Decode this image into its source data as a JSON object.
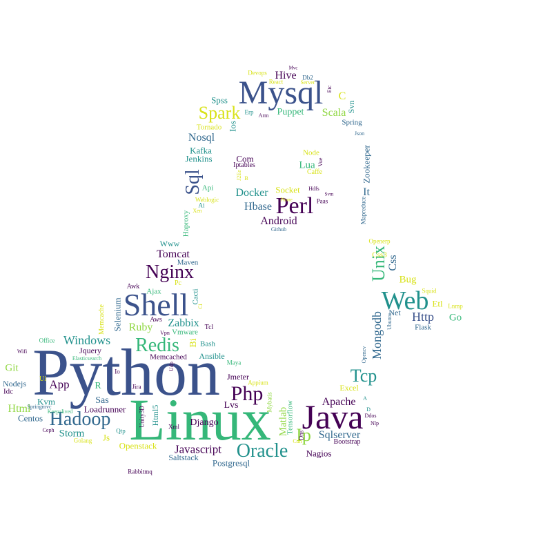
{
  "colors": {
    "purple": "#440154",
    "indigo": "#3b528b",
    "blue": "#31688e",
    "teal": "#21918c",
    "green": "#35b779",
    "lime": "#90d743",
    "yellow": "#d8e219"
  },
  "words": [
    {
      "text": "Python",
      "color": "indigo"
    },
    {
      "text": "Linux",
      "color": "green"
    },
    {
      "text": "Mysql",
      "color": "indigo"
    },
    {
      "text": "Shell",
      "color": "indigo"
    },
    {
      "text": "Java",
      "color": "purple"
    },
    {
      "text": "Web",
      "color": "teal"
    },
    {
      "text": "Perl",
      "color": "purple"
    },
    {
      "text": "Hadoop",
      "color": "blue"
    },
    {
      "text": "Redis",
      "color": "green"
    },
    {
      "text": "Oracle",
      "color": "teal"
    },
    {
      "text": "Nginx",
      "color": "purple"
    },
    {
      "text": "Php",
      "color": "purple"
    },
    {
      "text": "Sql",
      "color": "indigo"
    },
    {
      "text": "Tcp",
      "color": "teal"
    },
    {
      "text": "Spark",
      "color": "yellow"
    },
    {
      "text": "Unix",
      "color": "green"
    },
    {
      "text": "Windows",
      "color": "teal"
    },
    {
      "text": "Javascript",
      "color": "purple"
    },
    {
      "text": "Mongodb",
      "color": "blue"
    },
    {
      "text": "Ip",
      "color": "lime"
    },
    {
      "text": "Http",
      "color": "indigo"
    },
    {
      "text": "Sqlserver",
      "color": "blue"
    },
    {
      "text": "Apache",
      "color": "purple"
    },
    {
      "text": "Android",
      "color": "purple"
    },
    {
      "text": "Docker",
      "color": "teal"
    },
    {
      "text": "Hbase",
      "color": "blue"
    },
    {
      "text": "Tomcat",
      "color": "purple"
    },
    {
      "text": "Zabbix",
      "color": "teal"
    },
    {
      "text": "Ruby",
      "color": "lime"
    },
    {
      "text": "Storm",
      "color": "teal"
    },
    {
      "text": "App",
      "color": "purple"
    },
    {
      "text": "Nosql",
      "color": "blue"
    },
    {
      "text": "Hive",
      "color": "purple"
    },
    {
      "text": "Scala",
      "color": "lime"
    },
    {
      "text": "Puppet",
      "color": "green"
    },
    {
      "text": "Matlab",
      "color": "lime"
    },
    {
      "text": "Bug",
      "color": "yellow"
    },
    {
      "text": "Css",
      "color": "blue"
    },
    {
      "text": "Go",
      "color": "green"
    },
    {
      "text": "Selenium",
      "color": "blue"
    },
    {
      "text": "Html",
      "color": "lime"
    },
    {
      "text": "Git",
      "color": "lime"
    },
    {
      "text": "Kvm",
      "color": "teal"
    },
    {
      "text": "Centos",
      "color": "blue"
    },
    {
      "text": "Sas",
      "color": "blue"
    },
    {
      "text": "Js",
      "color": "yellow"
    },
    {
      "text": "Lvs",
      "color": "purple"
    },
    {
      "text": "Django",
      "color": "purple"
    },
    {
      "text": "Postgresql",
      "color": "blue"
    },
    {
      "text": "Saltstack",
      "color": "blue"
    },
    {
      "text": "Openstack",
      "color": "yellow"
    },
    {
      "text": "Nagios",
      "color": "purple"
    },
    {
      "text": "Excel",
      "color": "yellow"
    },
    {
      "text": "Jmeter",
      "color": "purple"
    },
    {
      "text": "Loadrunner",
      "color": "purple"
    },
    {
      "text": "Jquery",
      "color": "purple"
    },
    {
      "text": "Memcached",
      "color": "purple"
    },
    {
      "text": "Ansible",
      "color": "teal"
    },
    {
      "text": "Bash",
      "color": "teal"
    },
    {
      "text": "Vmware",
      "color": "green"
    },
    {
      "text": "Ajax",
      "color": "green"
    },
    {
      "text": "Maven",
      "color": "blue"
    },
    {
      "text": "Www",
      "color": "teal"
    },
    {
      "text": "Haproxy",
      "color": "green"
    },
    {
      "text": "Kafka",
      "color": "teal"
    },
    {
      "text": "Jenkins",
      "color": "teal"
    },
    {
      "text": "Ios",
      "color": "teal"
    },
    {
      "text": "Spss",
      "color": "teal"
    },
    {
      "text": "Tornado",
      "color": "yellow"
    },
    {
      "text": "Spring",
      "color": "blue"
    },
    {
      "text": "Svn",
      "color": "teal"
    },
    {
      "text": "C",
      "color": "yellow"
    },
    {
      "text": "Zookeeper",
      "color": "blue"
    },
    {
      "text": "It",
      "color": "blue"
    },
    {
      "text": "Lua",
      "color": "green"
    },
    {
      "text": "Node",
      "color": "yellow"
    },
    {
      "text": "Socket",
      "color": "yellow"
    },
    {
      "text": "Com",
      "color": "purple"
    },
    {
      "text": "Iptables",
      "color": "purple"
    },
    {
      "text": "Css3",
      "color": "yellow"
    },
    {
      "text": "Net",
      "color": "blue"
    },
    {
      "text": "Etl",
      "color": "yellow"
    },
    {
      "text": "Flask",
      "color": "blue"
    },
    {
      "text": "Nodejs",
      "color": "blue"
    },
    {
      "text": "Idc",
      "color": "purple"
    },
    {
      "text": "Memcache",
      "color": "yellow"
    },
    {
      "text": "Cacti",
      "color": "teal"
    },
    {
      "text": "Bootstrap",
      "color": "purple"
    },
    {
      "text": "Html5",
      "color": "teal"
    },
    {
      "text": "Api",
      "color": "green"
    },
    {
      "text": "Mapreduce",
      "color": "blue"
    },
    {
      "text": "R",
      "color": "green"
    },
    {
      "text": "Awk",
      "color": "purple"
    },
    {
      "text": "Tensorflow",
      "color": "green"
    },
    {
      "text": "Unity3D",
      "color": "purple"
    },
    {
      "text": "Qtp",
      "color": "teal"
    },
    {
      "text": "Golang",
      "color": "yellow"
    },
    {
      "text": "Rabbitmq",
      "color": "purple"
    },
    {
      "text": "Ceph",
      "color": "purple"
    },
    {
      "text": "Wifi",
      "color": "purple"
    },
    {
      "text": "Ui",
      "color": "yellow"
    },
    {
      "text": "Keepalived",
      "color": "green"
    },
    {
      "text": "Springmvc",
      "color": "blue"
    },
    {
      "text": "Elasticsearch",
      "color": "green"
    },
    {
      "text": "Office",
      "color": "green"
    },
    {
      "text": "Maya",
      "color": "green"
    },
    {
      "text": "Appium",
      "color": "yellow"
    },
    {
      "text": "Mybatis",
      "color": "lime"
    },
    {
      "text": "Dns",
      "color": "purple"
    },
    {
      "text": "Cdn",
      "color": "yellow"
    },
    {
      "text": "Opencv",
      "color": "blue"
    },
    {
      "text": "Ubuntu",
      "color": "blue"
    },
    {
      "text": "Ddos",
      "color": "purple"
    },
    {
      "text": "Nlp",
      "color": "purple"
    },
    {
      "text": "A",
      "color": "teal"
    },
    {
      "text": "D",
      "color": "teal"
    },
    {
      "text": "Squid",
      "color": "yellow"
    },
    {
      "text": "Lnmp",
      "color": "yellow"
    },
    {
      "text": "Openerp",
      "color": "yellow"
    },
    {
      "text": "Github",
      "color": "blue"
    },
    {
      "text": "Paas",
      "color": "purple"
    },
    {
      "text": "Hdfs",
      "color": "purple"
    },
    {
      "text": "Svm",
      "color": "purple"
    },
    {
      "text": "Phone",
      "color": "yellow"
    },
    {
      "text": "Caffe",
      "color": "yellow"
    },
    {
      "text": "Vue",
      "color": "purple"
    },
    {
      "text": "Json",
      "color": "blue"
    },
    {
      "text": "Erp",
      "color": "teal"
    },
    {
      "text": "Arm",
      "color": "purple"
    },
    {
      "text": "Devops",
      "color": "yellow"
    },
    {
      "text": "React",
      "color": "yellow"
    },
    {
      "text": "Mvc",
      "color": "purple"
    },
    {
      "text": "Db2",
      "color": "blue"
    },
    {
      "text": "Server",
      "color": "yellow"
    },
    {
      "text": "Etc",
      "color": "purple"
    },
    {
      "text": "Weblogic",
      "color": "yellow"
    },
    {
      "text": "Ai",
      "color": "teal"
    },
    {
      "text": "Xen",
      "color": "yellow"
    },
    {
      "text": "J2Ee",
      "color": "yellow"
    },
    {
      "text": "B",
      "color": "yellow"
    },
    {
      "text": "Pc",
      "color": "yellow"
    },
    {
      "text": "Ci",
      "color": "yellow"
    },
    {
      "text": "Bi",
      "color": "yellow"
    },
    {
      "text": "Tcl",
      "color": "purple"
    },
    {
      "text": "Aws",
      "color": "purple"
    },
    {
      "text": "Vpn",
      "color": "purple"
    },
    {
      "text": "Xml",
      "color": "purple"
    },
    {
      "text": "Jira",
      "color": "purple"
    },
    {
      "text": "Io",
      "color": "purple"
    },
    {
      "text": "Udp",
      "color": "purple"
    }
  ]
}
